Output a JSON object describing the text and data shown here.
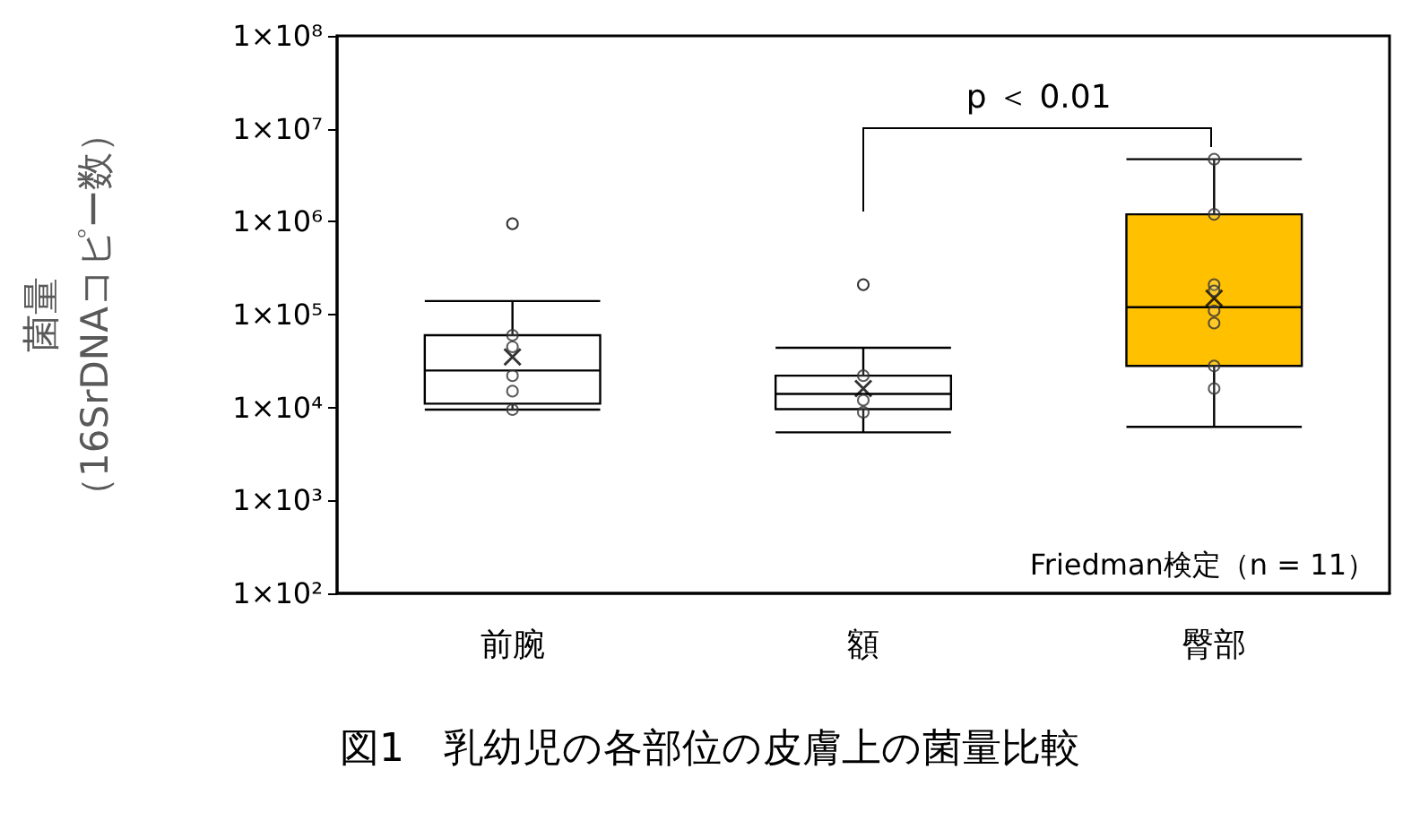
{
  "chart_data": {
    "type": "box",
    "title": "図1　乳幼児の各部位の皮膚上の菌量比較",
    "ylabel": "菌量（16SrDNAコピー数）",
    "categories": [
      "前腕",
      "額",
      "臀部"
    ],
    "colors": [
      "#ffffff",
      "#ffffff",
      "#ffc000"
    ],
    "boxes": [
      {
        "low": 9500,
        "q1": 11000,
        "median": 25000,
        "q3": 60000,
        "high": 140000,
        "mean": 35000,
        "outliers": [
          950000
        ]
      },
      {
        "low": 5400,
        "q1": 9600,
        "median": 14000,
        "q3": 22000,
        "high": 44000,
        "mean": 16000,
        "outliers": [
          210000
        ]
      },
      {
        "low": 6200,
        "q1": 28000,
        "median": 120000,
        "q3": 1200000,
        "high": 4700000,
        "mean": 150000
      }
    ],
    "series": [
      {
        "type": "scatter",
        "marker": "circle",
        "x": [
          "前腕",
          "前腕",
          "前腕",
          "前腕",
          "前腕",
          "額",
          "額",
          "額",
          "臀部",
          "臀部",
          "臀部",
          "臀部",
          "臀部",
          "臀部",
          "臀部",
          "臀部"
        ],
        "values": [
          60000,
          45000,
          22000,
          15000,
          9500,
          22000,
          12000,
          8900,
          4700000,
          1200000,
          210000,
          110000,
          81000,
          28000,
          16000,
          180000
        ]
      }
    ],
    "ylim": [
      100,
      100000000
    ],
    "log": true,
    "yticks": [
      {
        "value": 100,
        "label": "1×10²"
      },
      {
        "value": 1000,
        "label": "1×10³"
      },
      {
        "value": 10000,
        "label": "1×10⁴"
      },
      {
        "value": 100000,
        "label": "1×10⁵"
      },
      {
        "value": 1000000,
        "label": "1×10⁶"
      },
      {
        "value": 10000000,
        "label": "1×10⁷"
      },
      {
        "value": 100000000,
        "label": "1×10⁸"
      }
    ],
    "annotations": [
      "p ＜ 0.01",
      "Friedman検定（n = 11）"
    ],
    "grid": false
  }
}
